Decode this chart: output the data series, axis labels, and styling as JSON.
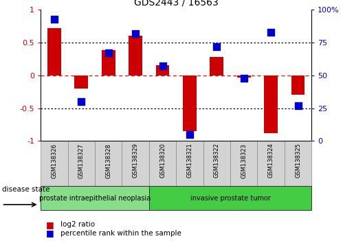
{
  "title": "GDS2443 / 16563",
  "samples": [
    "GSM138326",
    "GSM138327",
    "GSM138328",
    "GSM138329",
    "GSM138320",
    "GSM138321",
    "GSM138322",
    "GSM138323",
    "GSM138324",
    "GSM138325"
  ],
  "log2_ratio": [
    0.72,
    -0.2,
    0.38,
    0.6,
    0.15,
    -0.85,
    0.28,
    -0.03,
    -0.88,
    -0.3
  ],
  "percentile": [
    93,
    30,
    67,
    82,
    57,
    5,
    72,
    48,
    83,
    27
  ],
  "bar_color": "#cc0000",
  "dot_color": "#0000cc",
  "ylim_left": [
    -1,
    1
  ],
  "ylim_right": [
    0,
    100
  ],
  "yticks_left": [
    -1,
    -0.5,
    0,
    0.5,
    1
  ],
  "ytick_labels_left": [
    "-1",
    "-0.5",
    "0",
    "0.5",
    "1"
  ],
  "yticks_right": [
    0,
    25,
    50,
    75,
    100
  ],
  "ytick_labels_right": [
    "0",
    "25",
    "50",
    "75",
    "100%"
  ],
  "disease_groups": [
    {
      "label": "prostate intraepithelial neoplasia",
      "start": 0,
      "end": 4,
      "color": "#88dd88"
    },
    {
      "label": "invasive prostate tumor",
      "start": 4,
      "end": 10,
      "color": "#44cc44"
    }
  ],
  "disease_state_label": "disease state",
  "legend": [
    {
      "color": "#cc0000",
      "label": "log2 ratio"
    },
    {
      "color": "#0000cc",
      "label": "percentile rank within the sample"
    }
  ],
  "bar_width": 0.5,
  "dot_size": 50,
  "bg_color": "#ffffff",
  "sample_box_color": "#d3d3d3",
  "sample_box_edge": "#888888",
  "title_fontsize": 10,
  "tick_fontsize": 8,
  "sample_fontsize": 6,
  "legend_fontsize": 8,
  "disease_fontsize": 7
}
